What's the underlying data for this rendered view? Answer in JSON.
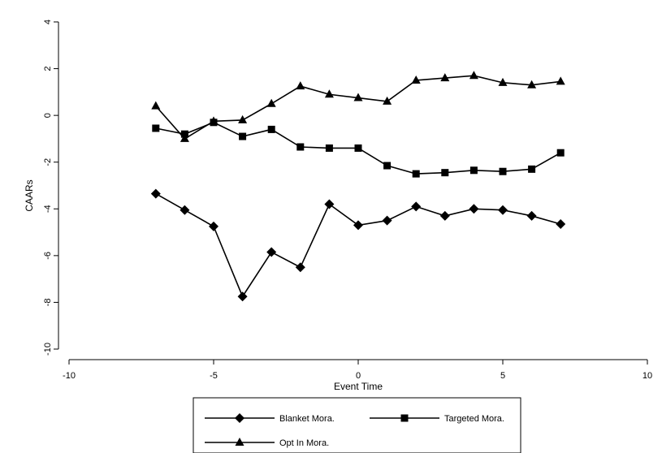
{
  "chart_data": {
    "type": "line",
    "xlabel": "Event Time",
    "ylabel": "CAARs",
    "xlim": [
      -10,
      10
    ],
    "ylim": [
      -10,
      4
    ],
    "xticks": [
      -10,
      -5,
      0,
      5,
      10
    ],
    "yticks": [
      -10,
      -8,
      -6,
      -4,
      -2,
      0,
      2,
      4
    ],
    "x": [
      -7,
      -6,
      -5,
      -4,
      -3,
      -2,
      -1,
      0,
      1,
      2,
      3,
      4,
      5,
      6,
      7
    ],
    "series": [
      {
        "name": "Blanket Mora.",
        "marker": "diamond",
        "values": [
          -3.35,
          -4.05,
          -4.75,
          -7.75,
          -5.85,
          -6.5,
          -3.8,
          -4.7,
          -4.5,
          -3.9,
          -4.3,
          -4.0,
          -4.05,
          -4.3,
          -4.65
        ]
      },
      {
        "name": "Targeted Mora.",
        "marker": "square",
        "values": [
          -0.55,
          -0.8,
          -0.3,
          -0.9,
          -0.6,
          -1.35,
          -1.4,
          -1.4,
          -2.15,
          -2.5,
          -2.45,
          -2.35,
          -2.4,
          -2.3,
          -1.6
        ]
      },
      {
        "name": "Opt In Mora.",
        "marker": "triangle",
        "values": [
          0.4,
          -1.0,
          -0.25,
          -0.2,
          0.5,
          1.25,
          0.9,
          0.75,
          0.6,
          1.5,
          1.6,
          1.7,
          1.4,
          1.3,
          1.45
        ]
      }
    ],
    "grid": false,
    "legend_position": "bottom"
  },
  "colors": {
    "line": "#000000",
    "axis": "#000000"
  }
}
